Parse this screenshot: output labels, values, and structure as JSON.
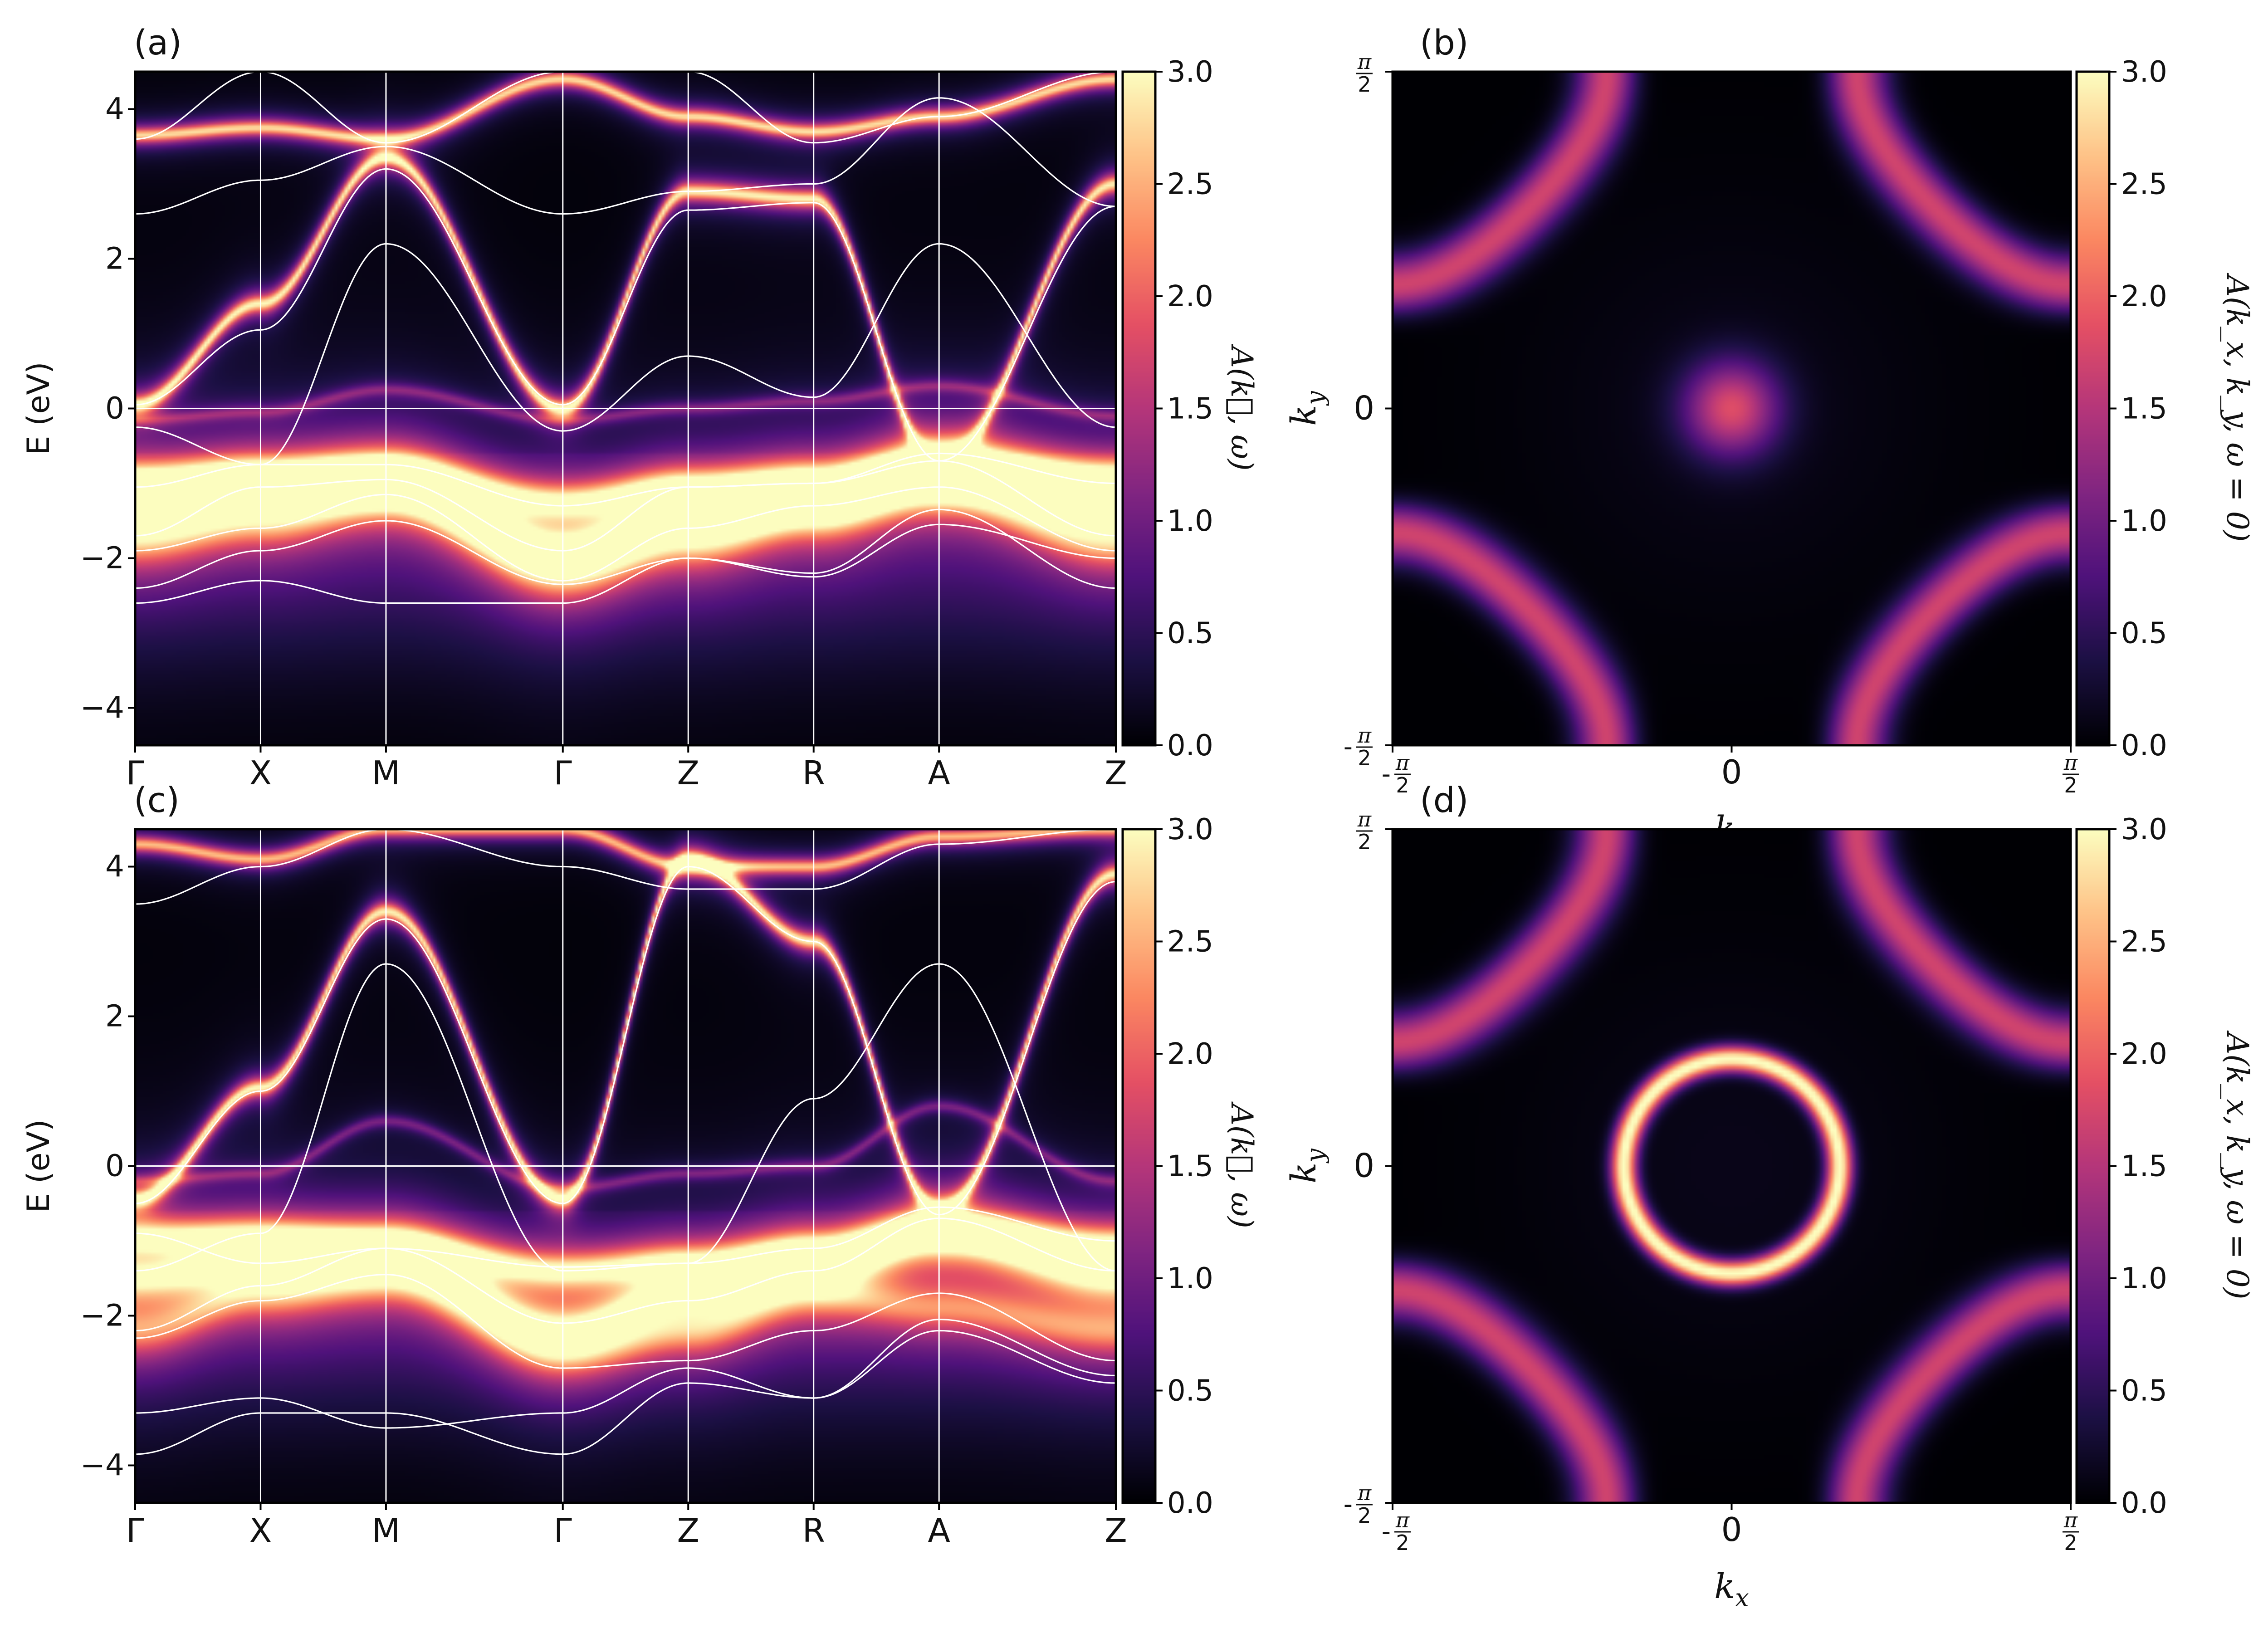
{
  "palette": {
    "colormap": "magma",
    "stops": [
      "#000004",
      "#1c1044",
      "#4f127b",
      "#812581",
      "#b5367a",
      "#e55064",
      "#fb8761",
      "#fec287",
      "#fcfdbf"
    ],
    "overlay_line": "#ffffff",
    "axes": "#000000"
  },
  "chart_data": [
    {
      "panel": "(a)",
      "type": "heatmap",
      "subtype": "spectral-function band structure with DFT band overlay",
      "ylabel": "E (eV)",
      "ylim": [
        -4.5,
        4.5
      ],
      "yticks": [
        -4,
        -2,
        0,
        2,
        4
      ],
      "ytick_labels": [
        "−4",
        "−2",
        "0",
        "2",
        "4"
      ],
      "k_path": [
        "Γ",
        "X",
        "M",
        "Γ",
        "Z",
        "R",
        "A",
        "Z"
      ],
      "k_path_distance": [
        0,
        1,
        2,
        3.41,
        4.41,
        5.41,
        6.41,
        7.82
      ],
      "fermi_level": 0,
      "colorbar": {
        "label": "A(k⃗, ω)",
        "range": [
          0,
          3.0
        ],
        "ticks": [
          0,
          0.5,
          1,
          1.5,
          2,
          2.5,
          3
        ],
        "tick_labels": [
          "0.0",
          "0.5",
          "1.0",
          "1.5",
          "2.0",
          "2.5",
          "3.0"
        ]
      },
      "spectral_bands": [
        {
          "name": "upper band",
          "E": [
            0.05,
            1.4,
            3.35,
            0.0,
            2.9,
            2.8,
            -0.75,
            3.0
          ],
          "width": 0.12,
          "weight": 2.9
        },
        {
          "name": "flat band",
          "E": [
            3.65,
            3.75,
            3.6,
            4.4,
            3.9,
            3.7,
            3.9,
            4.4
          ],
          "width": 0.1,
          "weight": 2.8
        },
        {
          "name": "incoherent band near EF",
          "E": [
            -0.15,
            -0.05,
            0.25,
            -0.15,
            0.0,
            0.1,
            0.3,
            -0.1
          ],
          "width": 0.08,
          "weight": 0.9
        },
        {
          "name": "lower band 1",
          "E": [
            -0.95,
            -0.9,
            -0.85,
            -1.25,
            -1.05,
            -1.0,
            -0.7,
            -0.9
          ],
          "width": 0.25,
          "weight": 2.6
        },
        {
          "name": "lower band 2",
          "E": [
            -1.3,
            -1.05,
            -0.95,
            -1.9,
            -1.4,
            -1.2,
            -0.85,
            -1.3
          ],
          "width": 0.3,
          "weight": 2.3
        },
        {
          "name": "lower band 3",
          "E": [
            -1.75,
            -1.5,
            -1.2,
            -2.2,
            -1.8,
            -1.4,
            -1.1,
            -1.8
          ],
          "width": 0.35,
          "weight": 1.8
        }
      ],
      "dft_bands": [
        {
          "E": [
            0.05,
            1.05,
            3.2,
            0.05,
            2.65,
            2.75,
            -0.7,
            2.7
          ]
        },
        {
          "E": [
            2.6,
            3.05,
            3.5,
            2.6,
            2.9,
            3.0,
            4.15,
            2.7
          ]
        },
        {
          "E": [
            3.6,
            4.5,
            3.55,
            4.5,
            4.5,
            3.55,
            3.9,
            4.5
          ]
        },
        {
          "E": [
            -0.25,
            -0.75,
            2.2,
            -0.3,
            0.7,
            0.15,
            2.2,
            -0.25
          ]
        },
        {
          "E": [
            -1.05,
            -0.75,
            -0.75,
            -1.3,
            -1.05,
            -1.0,
            -0.6,
            -1.0
          ]
        },
        {
          "E": [
            -1.7,
            -1.05,
            -0.95,
            -1.9,
            -1.05,
            -1.0,
            -0.7,
            -1.7
          ]
        },
        {
          "E": [
            -1.9,
            -1.6,
            -1.15,
            -2.3,
            -1.6,
            -1.3,
            -1.05,
            -1.9
          ]
        },
        {
          "E": [
            -2.4,
            -1.9,
            -1.5,
            -2.35,
            -2.0,
            -2.2,
            -1.35,
            -2.4
          ]
        },
        {
          "E": [
            -2.6,
            -2.3,
            -2.6,
            -2.6,
            -2.0,
            -2.25,
            -1.55,
            -2.0
          ]
        }
      ]
    },
    {
      "panel": "(b)",
      "type": "heatmap",
      "subtype": "Fermi surface map",
      "xlabel": "k_x",
      "ylabel": "k_y",
      "xlim": [
        -1.5708,
        1.5708
      ],
      "ylim": [
        -1.5708,
        1.5708
      ],
      "xtick_labels": [
        "-π/2",
        "0",
        "π/2"
      ],
      "ytick_labels": [
        "-π/2",
        "0",
        "π/2"
      ],
      "colorbar": {
        "label": "A(k_x, k_y, ω = 0)",
        "range": [
          0,
          3.0
        ],
        "ticks": [
          0,
          0.5,
          1,
          1.5,
          2,
          2.5,
          3
        ],
        "tick_labels": [
          "0.0",
          "0.5",
          "1.0",
          "1.5",
          "2.0",
          "2.5",
          "3.0"
        ]
      },
      "features": [
        {
          "name": "corner pockets",
          "level": 1.7,
          "contour_cos_sum": -0.6,
          "width": 0.12
        },
        {
          "name": "central spot",
          "level": 1.7,
          "radius": 0.22
        }
      ]
    },
    {
      "panel": "(c)",
      "type": "heatmap",
      "subtype": "spectral-function band structure with DFT band overlay",
      "ylabel": "E (eV)",
      "ylim": [
        -4.5,
        4.5
      ],
      "yticks": [
        -4,
        -2,
        0,
        2,
        4
      ],
      "ytick_labels": [
        "−4",
        "−2",
        "0",
        "2",
        "4"
      ],
      "k_path": [
        "Γ",
        "X",
        "M",
        "Γ",
        "Z",
        "R",
        "A",
        "Z"
      ],
      "k_path_distance": [
        0,
        1,
        2,
        3.41,
        4.41,
        5.41,
        6.41,
        7.82
      ],
      "fermi_level": 0,
      "colorbar": {
        "label": "A(k⃗, ω)",
        "range": [
          0,
          3.0
        ],
        "ticks": [
          0,
          0.5,
          1,
          1.5,
          2,
          2.5,
          3
        ],
        "tick_labels": [
          "0.0",
          "0.5",
          "1.0",
          "1.5",
          "2.0",
          "2.5",
          "3.0"
        ]
      },
      "spectral_bands": [
        {
          "name": "upper band",
          "E": [
            -0.45,
            1.05,
            3.4,
            -0.45,
            4.1,
            3.0,
            -0.6,
            3.9
          ],
          "width": 0.12,
          "weight": 2.9
        },
        {
          "name": "flat band",
          "E": [
            4.3,
            4.1,
            4.5,
            4.5,
            4.0,
            4.0,
            4.4,
            4.5
          ],
          "width": 0.1,
          "weight": 2.6
        },
        {
          "name": "incoherent band near EF",
          "E": [
            -0.2,
            -0.1,
            0.6,
            -0.3,
            -0.1,
            0.0,
            0.8,
            -0.2
          ],
          "width": 0.08,
          "weight": 0.9
        },
        {
          "name": "lower band 1",
          "E": [
            -0.95,
            -0.95,
            -1.05,
            -1.4,
            -1.3,
            -1.15,
            -0.8,
            -1.05
          ],
          "width": 0.25,
          "weight": 2.6
        },
        {
          "name": "lower band 2",
          "E": [
            -1.5,
            -1.3,
            -1.2,
            -2.2,
            -1.7,
            -1.35,
            -0.95,
            -1.5
          ],
          "width": 0.3,
          "weight": 2.2
        },
        {
          "name": "lower band 3",
          "E": [
            -2.2,
            -1.7,
            -1.5,
            -2.5,
            -2.2,
            -1.7,
            -1.9,
            -2.2
          ],
          "width": 0.35,
          "weight": 1.7
        }
      ],
      "dft_bands": [
        {
          "E": [
            -0.5,
            1.0,
            3.3,
            -0.5,
            4.0,
            3.0,
            -0.65,
            3.8
          ]
        },
        {
          "E": [
            3.5,
            4.0,
            4.5,
            4.0,
            3.7,
            3.7,
            4.3,
            4.5
          ]
        },
        {
          "E": [
            -1.4,
            -0.9,
            2.7,
            -1.4,
            -1.3,
            0.9,
            2.7,
            -1.4
          ]
        },
        {
          "E": [
            -0.9,
            -1.3,
            -1.1,
            -1.35,
            -1.3,
            -1.1,
            -0.55,
            -1.0
          ]
        },
        {
          "E": [
            -2.2,
            -1.6,
            -1.1,
            -2.1,
            -1.8,
            -1.4,
            -0.7,
            -1.4
          ]
        },
        {
          "E": [
            -2.3,
            -1.8,
            -1.45,
            -2.7,
            -2.6,
            -2.2,
            -1.7,
            -2.6
          ]
        },
        {
          "E": [
            -3.3,
            -3.1,
            -3.5,
            -3.3,
            -2.7,
            -3.1,
            -2.05,
            -2.8
          ]
        },
        {
          "E": [
            -3.85,
            -3.3,
            -3.3,
            -3.85,
            -2.9,
            -3.1,
            -2.2,
            -2.9
          ]
        }
      ]
    },
    {
      "panel": "(d)",
      "type": "heatmap",
      "subtype": "Fermi surface map",
      "xlabel": "k_x",
      "ylabel": "k_y",
      "xlim": [
        -1.5708,
        1.5708
      ],
      "ylim": [
        -1.5708,
        1.5708
      ],
      "xtick_labels": [
        "-π/2",
        "0",
        "π/2"
      ],
      "ytick_labels": [
        "-π/2",
        "0",
        "π/2"
      ],
      "colorbar": {
        "label": "A(k_x, k_y, ω = 0)",
        "range": [
          0,
          3.0
        ],
        "ticks": [
          0,
          0.5,
          1,
          1.5,
          2,
          2.5,
          3
        ],
        "tick_labels": [
          "0.0",
          "0.5",
          "1.0",
          "1.5",
          "2.0",
          "2.5",
          "3.0"
        ]
      },
      "features": [
        {
          "name": "corner pockets",
          "level": 1.7,
          "contour_cos_sum": -0.6,
          "width": 0.12
        },
        {
          "name": "central ring",
          "level": 3.0,
          "radius": 0.5,
          "width": 0.06
        }
      ]
    }
  ]
}
